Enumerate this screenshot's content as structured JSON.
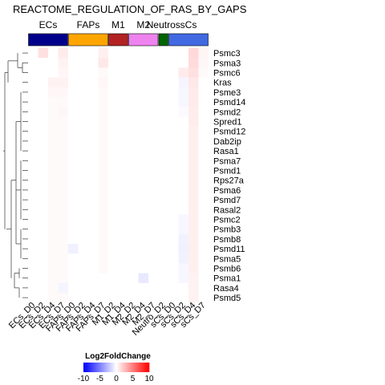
{
  "chart_data": {
    "type": "heatmap",
    "title": "REACTOME_REGULATION_OF_RAS_BY_GAPS",
    "groups": [
      {
        "label": "ECs",
        "color": "#00008B",
        "span": 4
      },
      {
        "label": "FAPs",
        "color": "#FFA500",
        "span": 4
      },
      {
        "label": "M1",
        "color": "#B22222",
        "span": 2
      },
      {
        "label": "M2",
        "color": "#EE82EE",
        "span": 3
      },
      {
        "label": "Neutros",
        "color": "#006400",
        "span": 1
      },
      {
        "label": "sCs",
        "color": "#4169E1",
        "span": 4
      }
    ],
    "columns": [
      "ECs_D0",
      "ECs_D2",
      "ECs_D4",
      "ECs_D7",
      "FAPs_D0",
      "FAPs_D2",
      "FAPs_D4",
      "FAPs_D7",
      "M1_D2",
      "M1_D4",
      "M2_D2",
      "M2_D4",
      "M2_D7",
      "Neutro_D2",
      "sCs_D0",
      "sCs_D2",
      "sCs_D4",
      "sCs_D7"
    ],
    "rows": [
      "Psmc3",
      "Psma3",
      "Psmc6",
      "Kras",
      "Psme3",
      "Psmd14",
      "Psmd2",
      "Spred1",
      "Psmd12",
      "Dab2ip",
      "Rasa1",
      "Psma7",
      "Psmd1",
      "Rps27a",
      "Psma6",
      "Psmd7",
      "Rasal2",
      "Psmc2",
      "Psmb3",
      "Psmb8",
      "Psmd11",
      "Psma5",
      "Psmb6",
      "Psma1",
      "Rasa4",
      "Psmd5"
    ],
    "values": [
      [
        0,
        1.2,
        0,
        0.8,
        0,
        0,
        0,
        0.6,
        0,
        0,
        0,
        0,
        0,
        0,
        0,
        0,
        1.5,
        0.4
      ],
      [
        0,
        0,
        0,
        0.5,
        0,
        0,
        0,
        0.9,
        0,
        0,
        0,
        0,
        0,
        0,
        0,
        0,
        1.4,
        0.3
      ],
      [
        0,
        0,
        0,
        0.3,
        0,
        0,
        0,
        0.2,
        0,
        0,
        0,
        0,
        0,
        0,
        0,
        0.8,
        1.2,
        0.2
      ],
      [
        0,
        0,
        0.5,
        0.5,
        0,
        0,
        0,
        0.3,
        0,
        0,
        0,
        0,
        0,
        0,
        0,
        -0.4,
        0.9,
        0
      ],
      [
        0,
        0,
        0.3,
        0.3,
        0,
        0,
        0,
        0.2,
        0,
        0,
        0,
        0,
        0,
        0,
        0,
        -0.3,
        0.8,
        0
      ],
      [
        0,
        0,
        0.2,
        0.2,
        0,
        0,
        0,
        0.2,
        0,
        0,
        0,
        0,
        0,
        0,
        0,
        -0.3,
        0.8,
        0
      ],
      [
        0,
        0,
        0.2,
        0.3,
        0,
        0,
        0,
        0.2,
        0,
        0,
        0,
        0,
        0,
        0,
        0,
        -0.2,
        0.7,
        0
      ],
      [
        0,
        0,
        0.2,
        0.2,
        0,
        0,
        0,
        0.2,
        0,
        0,
        0,
        0,
        0,
        0,
        0,
        0,
        0.7,
        0
      ],
      [
        0,
        0,
        0.2,
        0.2,
        0,
        0,
        0,
        0.2,
        0,
        0,
        0,
        0,
        0,
        0,
        0,
        0,
        0.6,
        0
      ],
      [
        0,
        0,
        0.2,
        0.2,
        0,
        0,
        0,
        0.2,
        0,
        0,
        0,
        0,
        0,
        0,
        0,
        0,
        0.6,
        0
      ],
      [
        0,
        0,
        0.2,
        0.2,
        0,
        0,
        0,
        0.2,
        0,
        0,
        0,
        0,
        0,
        0,
        0,
        0,
        0.6,
        0
      ],
      [
        0,
        0,
        0.2,
        0.2,
        0,
        0,
        0,
        0.2,
        0,
        0,
        0,
        0,
        0,
        0,
        0,
        0,
        0.6,
        0
      ],
      [
        0,
        0,
        0.2,
        0.2,
        0,
        0,
        0,
        0.2,
        0,
        0,
        0,
        0,
        0,
        0,
        0,
        0,
        0.6,
        0
      ],
      [
        0,
        0,
        0.2,
        0.2,
        0,
        0,
        0,
        0.2,
        0,
        0,
        0,
        0,
        0,
        0,
        0,
        0,
        0.6,
        0
      ],
      [
        0,
        0,
        0.2,
        0.2,
        0,
        0,
        0,
        0.2,
        0,
        0,
        0,
        0,
        0,
        0,
        0,
        0,
        0.6,
        0
      ],
      [
        0,
        0,
        0.2,
        0.2,
        0,
        0,
        0,
        0.2,
        0,
        0,
        0,
        0,
        0,
        0,
        0,
        0,
        0.6,
        0
      ],
      [
        0,
        0,
        0.2,
        0.2,
        0,
        0,
        0,
        0.2,
        0,
        0,
        0,
        0,
        0,
        0,
        0,
        0,
        0.6,
        0
      ],
      [
        0,
        0,
        0.2,
        0.2,
        0,
        0,
        0,
        0.2,
        0,
        0,
        0,
        0,
        0,
        0,
        0,
        -0.3,
        0.6,
        0
      ],
      [
        0,
        0,
        0.2,
        0.2,
        0,
        0,
        0,
        0.2,
        0,
        0,
        0,
        0,
        0,
        0,
        0,
        -0.3,
        0.6,
        0
      ],
      [
        0,
        0,
        0.2,
        0.2,
        0,
        0,
        0,
        0.2,
        0,
        0,
        0,
        0,
        0,
        0,
        0,
        -0.5,
        0.6,
        0
      ],
      [
        0,
        0,
        0.2,
        0.2,
        -0.6,
        0,
        0,
        0.2,
        0,
        0,
        0,
        0,
        0,
        0,
        0,
        -0.6,
        0.6,
        0
      ],
      [
        0,
        0,
        0.2,
        0.2,
        0,
        0,
        0,
        0.2,
        0,
        0,
        0,
        0,
        0,
        0,
        0,
        -0.5,
        0.6,
        0
      ],
      [
        0,
        0,
        0.2,
        0.2,
        0,
        0,
        0,
        0.2,
        0,
        0,
        0,
        0,
        0,
        0,
        0,
        -0.3,
        0.6,
        0
      ],
      [
        0,
        0,
        0.2,
        0.2,
        0,
        0,
        0,
        0,
        0,
        0,
        0,
        -0.9,
        0,
        0,
        0,
        -0.3,
        0.5,
        0
      ],
      [
        0,
        0,
        0.2,
        -0.4,
        0,
        0,
        0,
        0,
        0,
        0,
        0,
        0,
        0,
        0,
        0,
        0,
        0.5,
        0
      ],
      [
        0,
        0,
        0.2,
        0.2,
        0,
        0,
        0,
        0,
        0,
        0,
        0,
        0,
        0,
        0,
        0,
        0,
        0.5,
        0
      ]
    ],
    "legend": {
      "title": "Log2FoldChange",
      "ticks": [
        -10,
        -5,
        0,
        5,
        10
      ],
      "range": [
        -10,
        10
      ],
      "colors": [
        "#0000FF",
        "#FFFFFF",
        "#FF0000"
      ]
    }
  }
}
